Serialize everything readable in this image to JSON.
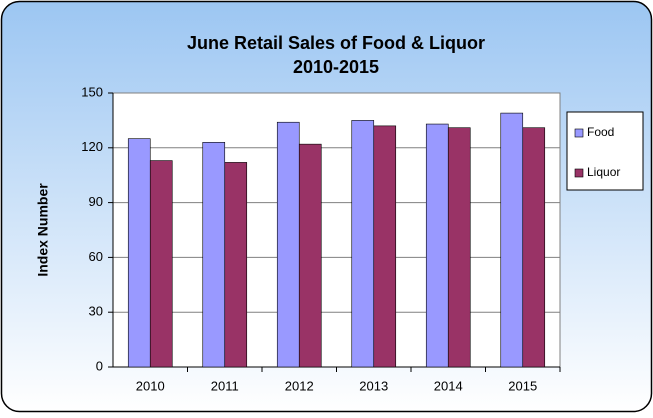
{
  "chart_data": {
    "type": "bar",
    "title": "June Retail Sales of Food & Liquor",
    "subtitle": "2010-2015",
    "y_label": "Index Number",
    "categories": [
      "2010",
      "2011",
      "2012",
      "2013",
      "2014",
      "2015"
    ],
    "series": [
      {
        "name": "Food",
        "color": "#9999ff",
        "values": [
          125,
          123,
          134,
          135,
          133,
          139
        ]
      },
      {
        "name": "Liquor",
        "color": "#993366",
        "values": [
          113,
          112,
          122,
          132,
          131,
          131
        ]
      }
    ],
    "ylim": [
      0,
      150
    ],
    "yticks": [
      0,
      30,
      60,
      90,
      120,
      150
    ],
    "grid": true,
    "legend": "right"
  }
}
